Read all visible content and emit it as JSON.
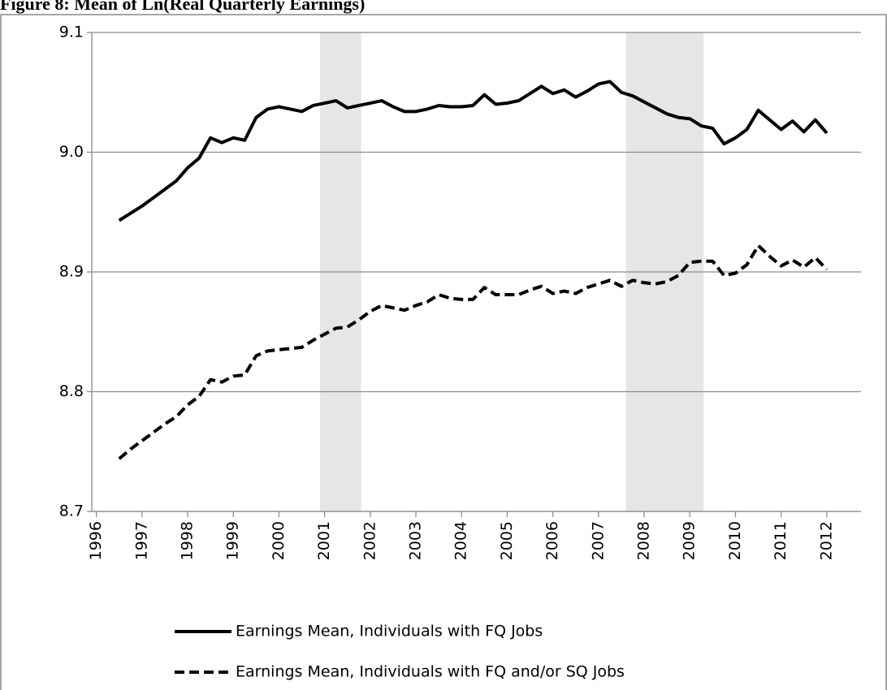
{
  "chart_data": {
    "type": "line",
    "title": "Figure 8: Mean of Ln(Real Quarterly Earnings)",
    "x": [
      1996.5,
      1996.75,
      1997,
      1997.25,
      1997.5,
      1997.75,
      1998,
      1998.25,
      1998.5,
      1998.75,
      1999,
      1999.25,
      1999.5,
      1999.75,
      2000,
      2000.25,
      2000.5,
      2000.75,
      2001,
      2001.25,
      2001.5,
      2001.75,
      2002,
      2002.25,
      2002.5,
      2002.75,
      2003,
      2003.25,
      2003.5,
      2003.75,
      2004,
      2004.25,
      2004.5,
      2004.75,
      2005,
      2005.25,
      2005.5,
      2005.75,
      2006,
      2006.25,
      2006.5,
      2006.75,
      2007,
      2007.25,
      2007.5,
      2007.75,
      2008,
      2008.25,
      2008.5,
      2008.75,
      2009,
      2009.25,
      2009.5,
      2009.75,
      2010,
      2010.25,
      2010.5,
      2010.75,
      2011,
      2011.25,
      2011.5,
      2011.75,
      2012
    ],
    "series": [
      {
        "name": "Earnings Mean, Individuals with FQ Jobs",
        "color": "#000000",
        "line_style": "solid",
        "values": [
          8.943,
          8.949,
          8.955,
          8.962,
          8.969,
          8.976,
          8.987,
          8.995,
          9.012,
          9.008,
          9.012,
          9.01,
          9.029,
          9.036,
          9.038,
          9.036,
          9.034,
          9.039,
          9.041,
          9.043,
          9.037,
          9.039,
          9.041,
          9.043,
          9.038,
          9.034,
          9.034,
          9.036,
          9.039,
          9.038,
          9.038,
          9.039,
          9.048,
          9.04,
          9.041,
          9.043,
          9.049,
          9.055,
          9.049,
          9.052,
          9.046,
          9.051,
          9.057,
          9.059,
          9.05,
          9.047,
          9.042,
          9.037,
          9.032,
          9.029,
          9.028,
          9.022,
          9.02,
          9.007,
          9.012,
          9.019,
          9.035,
          9.027,
          9.019,
          9.026,
          9.017,
          9.027,
          9.016
        ]
      },
      {
        "name": "Earnings Mean, Individuals with FQ and/or SQ Jobs",
        "color": "#000000",
        "line_style": "dashed",
        "values": [
          8.744,
          8.752,
          8.759,
          8.766,
          8.773,
          8.779,
          8.789,
          8.796,
          8.81,
          8.808,
          8.813,
          8.814,
          8.83,
          8.834,
          8.835,
          8.836,
          8.837,
          8.843,
          8.848,
          8.853,
          8.854,
          8.86,
          8.867,
          8.872,
          8.87,
          8.868,
          8.872,
          8.875,
          8.881,
          8.878,
          8.877,
          8.877,
          8.887,
          8.881,
          8.881,
          8.881,
          8.885,
          8.888,
          8.882,
          8.884,
          8.882,
          8.887,
          8.89,
          8.893,
          8.888,
          8.893,
          8.891,
          8.89,
          8.892,
          8.897,
          8.908,
          8.909,
          8.909,
          8.897,
          8.899,
          8.906,
          8.922,
          8.913,
          8.905,
          8.91,
          8.904,
          8.912,
          8.902
        ]
      }
    ],
    "shaded_regions": [
      [
        2000.9,
        2001.8
      ],
      [
        2007.6,
        2009.3
      ]
    ],
    "shade_color": "#e6e6e6",
    "xlim": [
      1995.9,
      2012.75
    ],
    "xticks": [
      1996,
      1997,
      1998,
      1999,
      2000,
      2001,
      2002,
      2003,
      2004,
      2005,
      2006,
      2007,
      2008,
      2009,
      2010,
      2011,
      2012
    ],
    "ylim": [
      8.7,
      9.1
    ],
    "yticks": [
      8.7,
      8.8,
      8.9,
      {
        "value": 9,
        "label": "9.0"
      },
      9.1
    ],
    "grid": true,
    "legend": "bottom"
  }
}
